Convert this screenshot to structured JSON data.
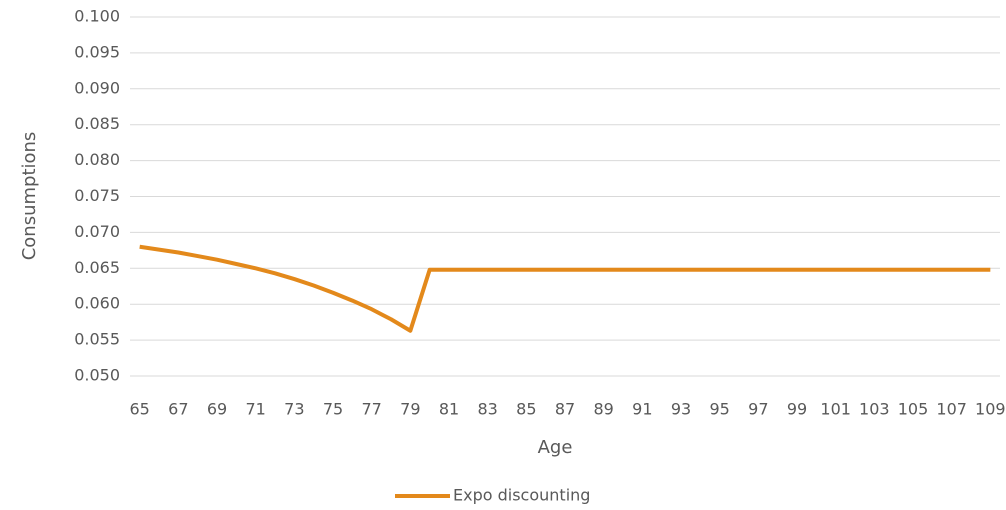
{
  "chart_data": {
    "type": "line",
    "x": [
      65,
      66,
      67,
      68,
      69,
      70,
      71,
      72,
      73,
      74,
      75,
      76,
      77,
      78,
      79,
      80,
      81,
      82,
      83,
      84,
      85,
      86,
      87,
      88,
      89,
      90,
      91,
      92,
      93,
      94,
      95,
      96,
      97,
      98,
      99,
      100,
      101,
      102,
      103,
      104,
      105,
      106,
      107,
      108,
      109
    ],
    "xlim": [
      64.5,
      109.5
    ],
    "xticks": [
      65,
      67,
      69,
      71,
      73,
      75,
      77,
      79,
      81,
      83,
      85,
      87,
      89,
      91,
      93,
      95,
      97,
      99,
      101,
      103,
      105,
      107,
      109
    ],
    "xlabel": "Age",
    "ylabel": "Consumptions",
    "ylim": [
      0.05,
      0.1
    ],
    "yticks": [
      {
        "value": 0.05,
        "label": "0.050"
      },
      0.055,
      {
        "value": 0.06,
        "label": "0.060"
      },
      0.065,
      {
        "value": 0.07,
        "label": "0.070"
      },
      0.075,
      {
        "value": 0.08,
        "label": "0.080"
      },
      0.085,
      {
        "value": 0.09,
        "label": "0.090"
      },
      0.095,
      {
        "value": 0.1,
        "label": "0.100"
      }
    ],
    "grid": true,
    "legend": "bottom",
    "series": [
      {
        "name": "Expo discounting",
        "color": "#e3891b",
        "values": [
          0.068,
          0.0676,
          0.0672,
          0.0667,
          0.0662,
          0.0656,
          0.065,
          0.0643,
          0.0635,
          0.0626,
          0.0616,
          0.0605,
          0.0593,
          0.0579,
          0.0563,
          0.0648,
          0.0648,
          0.0648,
          0.0648,
          0.0648,
          0.0648,
          0.0648,
          0.0648,
          0.0648,
          0.0648,
          0.0648,
          0.0648,
          0.0648,
          0.0648,
          0.0648,
          0.0648,
          0.0648,
          0.0648,
          0.0648,
          0.0648,
          0.0648,
          0.0648,
          0.0648,
          0.0648,
          0.0648,
          0.0648,
          0.0648,
          0.0648,
          0.0648,
          0.0648
        ]
      }
    ]
  }
}
